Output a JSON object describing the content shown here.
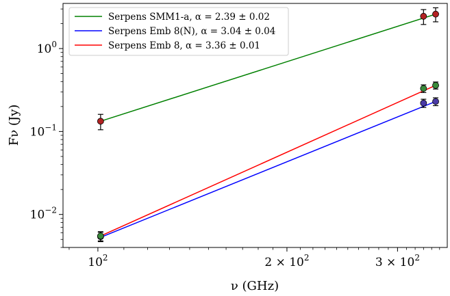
{
  "chart_data": {
    "type": "scatter",
    "title": "",
    "xlabel": "ν (GHz)",
    "ylabel": "Fν (Jy)",
    "xscale": "log",
    "yscale": "log",
    "xlim": [
      88,
      360
    ],
    "ylim": [
      0.004,
      3.5
    ],
    "x_ticks": [
      {
        "value": 100,
        "base": "10",
        "exp": "2",
        "mantissa": ""
      },
      {
        "value": 200,
        "base": "10",
        "exp": "2",
        "mantissa": "2 ×"
      },
      {
        "value": 300,
        "base": "10",
        "exp": "2",
        "mantissa": "3 ×"
      }
    ],
    "y_ticks": [
      {
        "value": 0.01,
        "base": "10",
        "exp": "−2"
      },
      {
        "value": 0.1,
        "base": "10",
        "exp": "−1"
      },
      {
        "value": 1,
        "base": "10",
        "exp": "0"
      }
    ],
    "grid": false,
    "legend_placement": "top-left",
    "series": [
      {
        "name": "Serpens SMM1-a,  α = 2.39 ± 0.02",
        "color": "#008000",
        "points": [
          {
            "x": 101,
            "y": 0.133,
            "yerr_lo": 0.028,
            "yerr_hi": 0.028
          },
          {
            "x": 330,
            "y": 2.45,
            "yerr_lo": 0.5,
            "yerr_hi": 0.5
          },
          {
            "x": 345,
            "y": 2.6,
            "yerr_lo": 0.5,
            "yerr_hi": 0.5
          }
        ],
        "fit": [
          {
            "x": 101,
            "y": 0.133
          },
          {
            "x": 345,
            "y": 2.6
          }
        ]
      },
      {
        "name": "Serpens Emb 8(N),  α = 3.04 ± 0.04",
        "color": "#0000ff",
        "points": [
          {
            "x": 101,
            "y": 0.0054,
            "yerr_lo": 0.0007,
            "yerr_hi": 0.0007
          },
          {
            "x": 330,
            "y": 0.22,
            "yerr_lo": 0.025,
            "yerr_hi": 0.025
          },
          {
            "x": 345,
            "y": 0.23,
            "yerr_lo": 0.025,
            "yerr_hi": 0.025
          }
        ],
        "fit": [
          {
            "x": 101,
            "y": 0.0053
          },
          {
            "x": 345,
            "y": 0.23
          }
        ]
      },
      {
        "name": "Serpens Emb 8,  α = 3.36 ± 0.01",
        "color": "#ff0000",
        "points": [
          {
            "x": 101,
            "y": 0.0055,
            "yerr_lo": 0.0007,
            "yerr_hi": 0.0007
          },
          {
            "x": 330,
            "y": 0.33,
            "yerr_lo": 0.035,
            "yerr_hi": 0.035
          },
          {
            "x": 345,
            "y": 0.36,
            "yerr_lo": 0.035,
            "yerr_hi": 0.035
          }
        ],
        "fit": [
          {
            "x": 101,
            "y": 0.0055
          },
          {
            "x": 345,
            "y": 0.36
          }
        ]
      }
    ],
    "marker_colors": [
      "#b22222",
      "#4a3aa6",
      "#3a8a3a"
    ]
  }
}
